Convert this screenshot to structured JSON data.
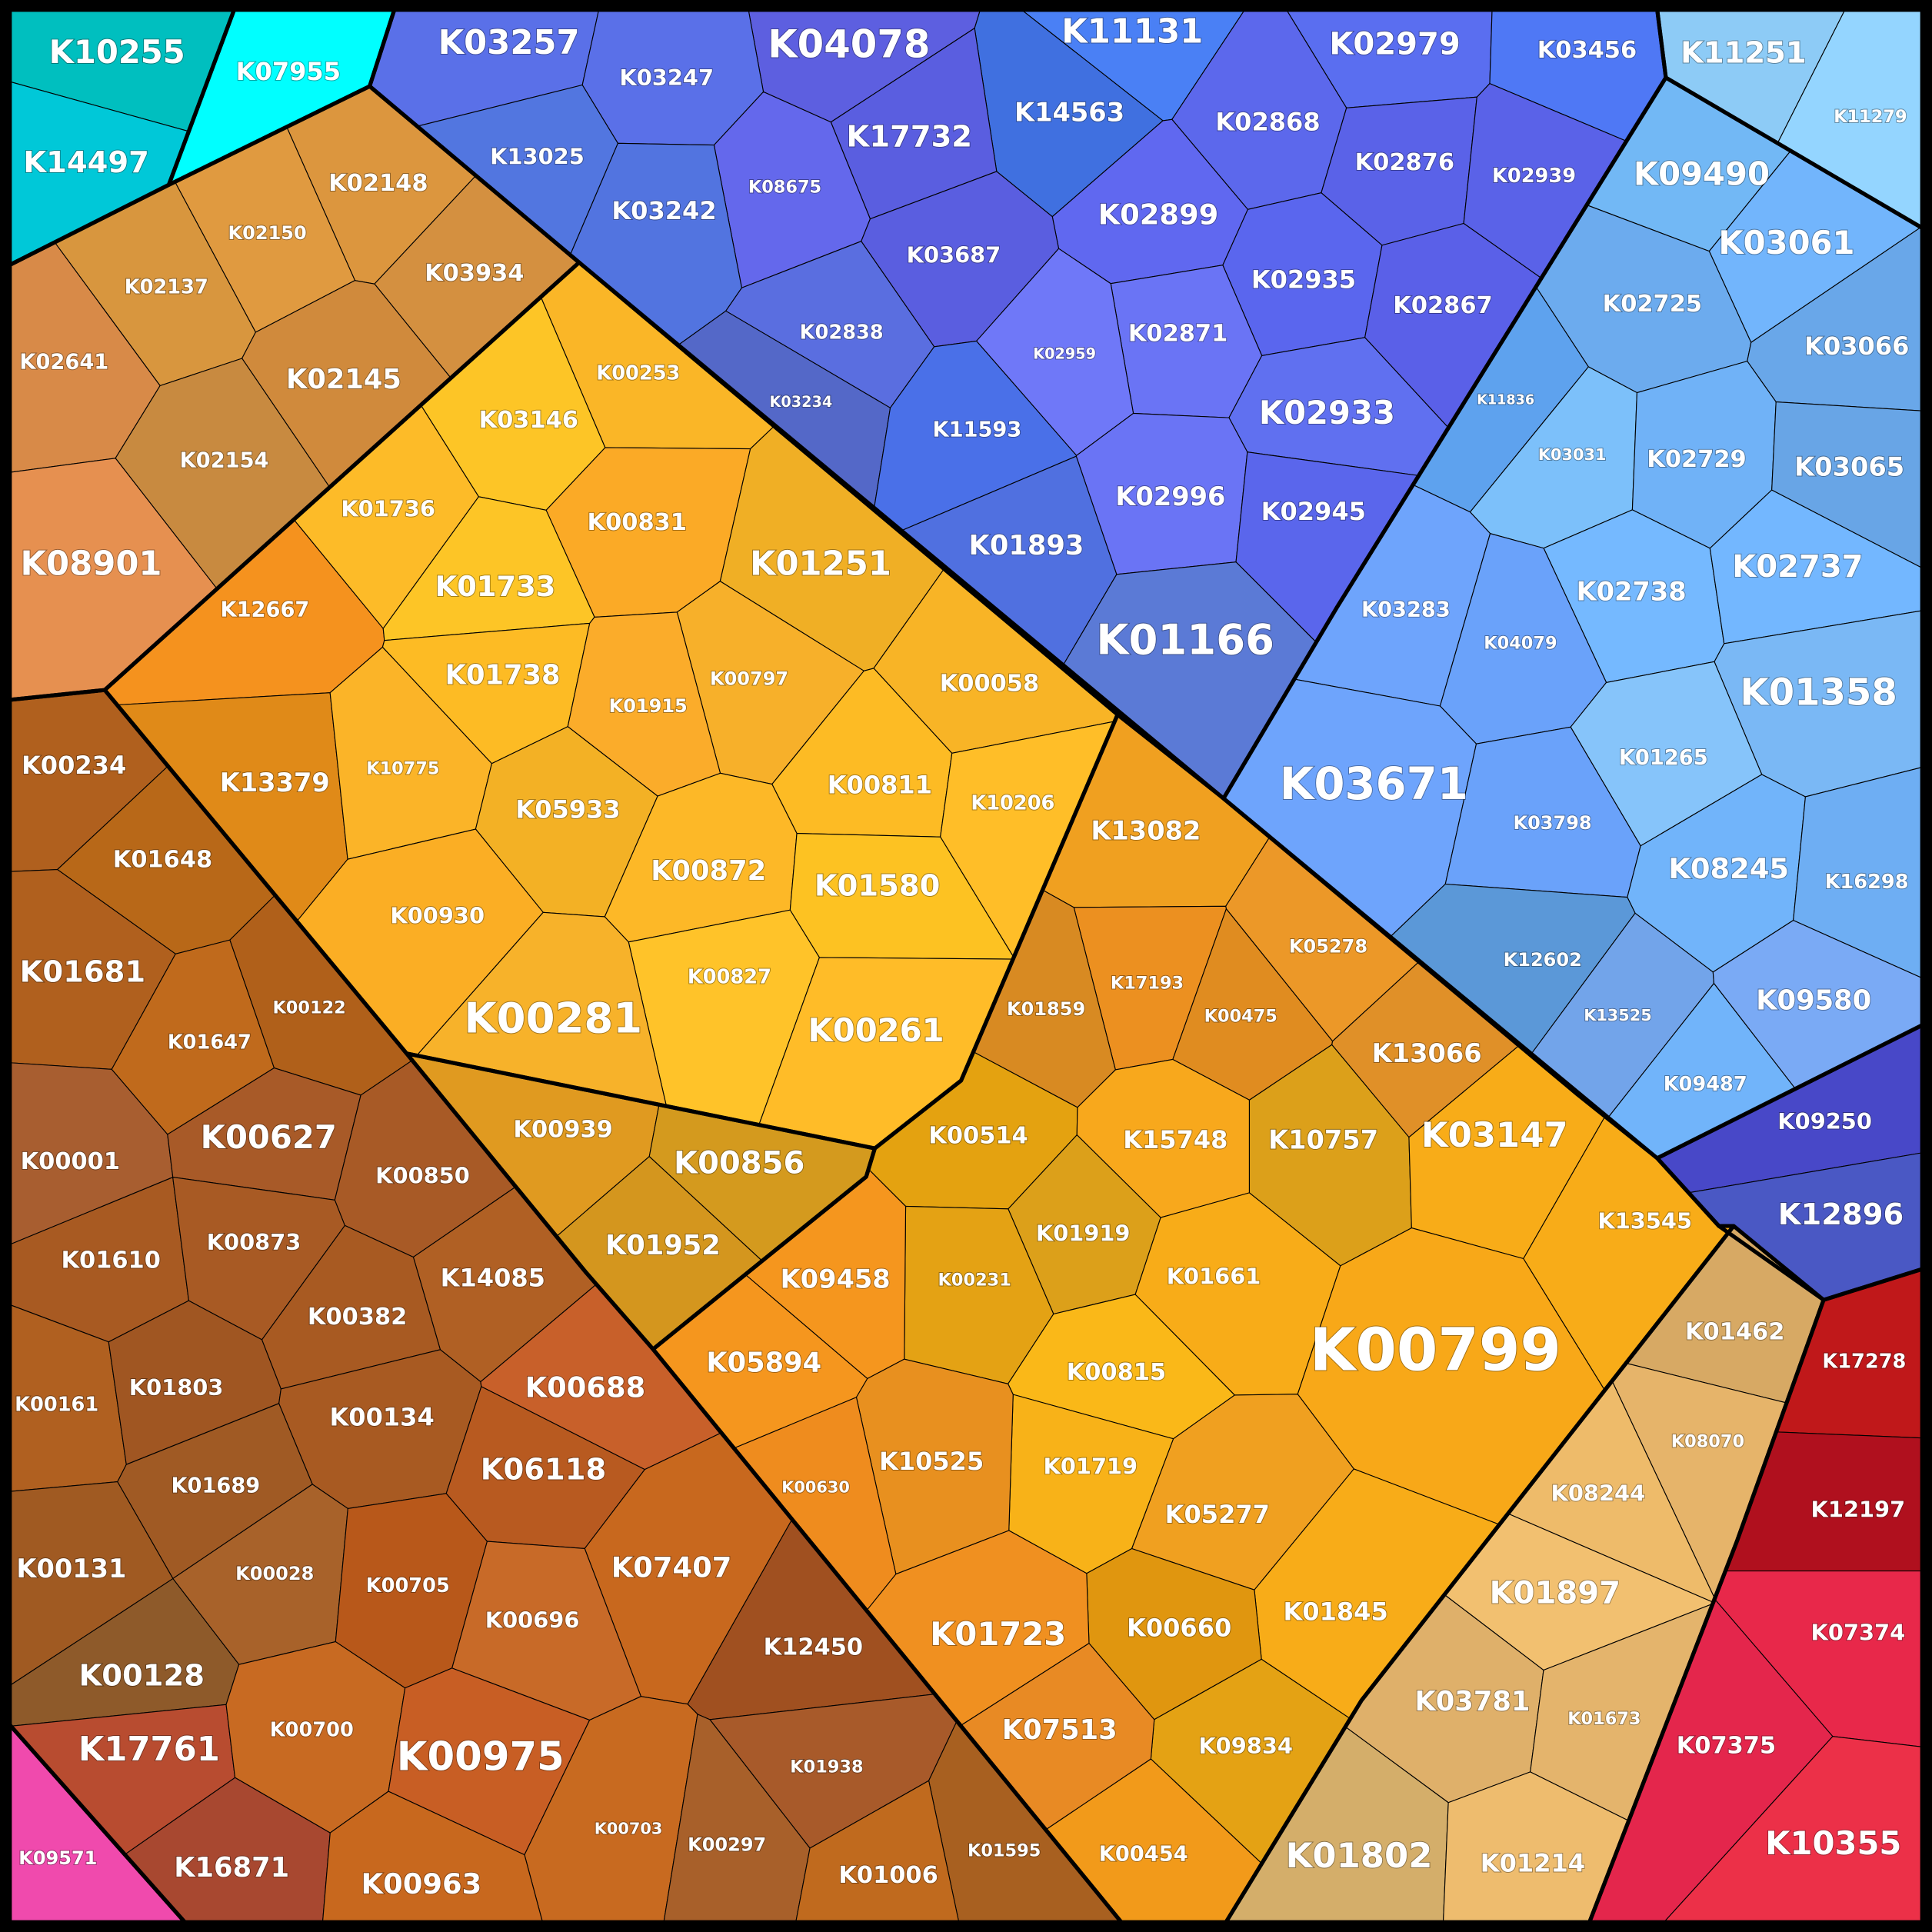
{
  "chart_data": {
    "type": "treemap",
    "layout": "voronoi",
    "groups": [
      {
        "id": "teal",
        "color": "#00c4c8",
        "cells": [
          {
            "label": "K10255",
            "color": "#00bfbf"
          },
          {
            "label": "K14497",
            "color": "#00c8d8"
          }
        ]
      },
      {
        "id": "cyan",
        "color": "#00ffff",
        "cells": [
          {
            "label": "K07955"
          }
        ]
      },
      {
        "id": "tan",
        "color": "#d4913f",
        "cells": [
          {
            "label": "K02148",
            "color": "#dc963e"
          },
          {
            "label": "K02150",
            "color": "#e09a40"
          },
          {
            "label": "K02137",
            "color": "#d8963e"
          },
          {
            "label": "K03934",
            "color": "#d49040"
          },
          {
            "label": "K02641",
            "color": "#d88a48"
          },
          {
            "label": "K02145",
            "color": "#d08a3c"
          },
          {
            "label": "K02154",
            "color": "#c88a40"
          },
          {
            "label": "K08901",
            "color": "#e69050"
          }
        ]
      },
      {
        "id": "yellow",
        "color": "#fdb827",
        "cells": [
          {
            "label": "K12667",
            "color": "#f5921e"
          },
          {
            "label": "K13379",
            "color": "#e08a18"
          },
          {
            "label": "K00253"
          },
          {
            "label": "K03146",
            "color": "#fdc526"
          },
          {
            "label": "K01736",
            "color": "#fdbb28"
          },
          {
            "label": "K00831",
            "color": "#fbaa26"
          },
          {
            "label": "K01251"
          },
          {
            "label": "K01733",
            "color": "#fdc526"
          },
          {
            "label": "K01738",
            "color": "#fdbb24"
          },
          {
            "label": "K00797",
            "color": "#f7b02a"
          },
          {
            "label": "K01915",
            "color": "#fbac2a"
          },
          {
            "label": "K00058"
          },
          {
            "label": "K10775",
            "color": "#fbb428"
          },
          {
            "label": "K05933"
          },
          {
            "label": "K00811",
            "color": "#fdbb24"
          },
          {
            "label": "K10206"
          },
          {
            "label": "K00872"
          },
          {
            "label": "K01580",
            "color": "#fdc222"
          },
          {
            "label": "K00930",
            "color": "#fbae24"
          },
          {
            "label": "K00827"
          },
          {
            "label": "K00281",
            "color": "#f7b22a"
          },
          {
            "label": "K00261"
          }
        ]
      },
      {
        "id": "blue",
        "color": "#5b6ee8",
        "cells": [
          {
            "label": "K03257",
            "color": "#5a70e8"
          },
          {
            "label": "K04078",
            "color": "#5d5fe0"
          },
          {
            "label": "K11131",
            "color": "#4a80f5"
          },
          {
            "label": "K02979",
            "color": "#5a6ef0"
          },
          {
            "label": "K03456",
            "color": "#4f78f5"
          },
          {
            "label": "K03247",
            "color": "#5a70e8"
          },
          {
            "label": "K14563",
            "color": "#4070e0"
          },
          {
            "label": "K02868",
            "color": "#5c68ec"
          },
          {
            "label": "K13025",
            "color": "#5276e0"
          },
          {
            "label": "K17732",
            "color": "#5a5ee0"
          },
          {
            "label": "K02876",
            "color": "#5a62e8"
          },
          {
            "label": "K02939",
            "color": "#5a62e8"
          },
          {
            "label": "K08675",
            "color": "#6468ec"
          },
          {
            "label": "K02899",
            "color": "#6068f0"
          },
          {
            "label": "K03242",
            "color": "#5274e0"
          },
          {
            "label": "K03687",
            "color": "#5a5ee0"
          },
          {
            "label": "K02935",
            "color": "#5a66ee"
          },
          {
            "label": "K02867",
            "color": "#5a60e8"
          },
          {
            "label": "K02838",
            "color": "#5a6ee0"
          },
          {
            "label": "K02871",
            "color": "#6a74f5"
          },
          {
            "label": "K02959",
            "color": "#6f78f8"
          },
          {
            "label": "K03234",
            "color": "#5468c8"
          },
          {
            "label": "K02933",
            "color": "#6070f0"
          },
          {
            "label": "K11593",
            "color": "#4a70e8"
          },
          {
            "label": "K02996",
            "color": "#6a74f5"
          },
          {
            "label": "K02945",
            "color": "#5a66ec"
          },
          {
            "label": "K01893",
            "color": "#5070e0"
          },
          {
            "label": "K01166",
            "color": "#5b7ad6"
          }
        ]
      },
      {
        "id": "pale-blue",
        "color": "#8ecdf8",
        "cells": [
          {
            "label": "K11251"
          },
          {
            "label": "K11279"
          }
        ]
      },
      {
        "id": "light-blue",
        "color": "#6fb0f5",
        "cells": [
          {
            "label": "K09490",
            "color": "#72b8f5"
          },
          {
            "label": "K03061"
          },
          {
            "label": "K02725"
          },
          {
            "label": "K03066"
          },
          {
            "label": "K11836",
            "color": "#5ea2ee"
          },
          {
            "label": "K03031",
            "color": "#7cc0fa"
          },
          {
            "label": "K02729"
          },
          {
            "label": "K03065"
          },
          {
            "label": "K02738"
          },
          {
            "label": "K02737"
          },
          {
            "label": "K03283",
            "color": "#6ea4fc"
          },
          {
            "label": "K04079",
            "color": "#6aa2fa"
          },
          {
            "label": "K01358",
            "color": "#7ab8f5"
          },
          {
            "label": "K03671",
            "color": "#6ea4fc"
          },
          {
            "label": "K01265",
            "color": "#86c4fa"
          },
          {
            "label": "K03798",
            "color": "#6aa2fa"
          },
          {
            "label": "K08245"
          },
          {
            "label": "K16298"
          },
          {
            "label": "K12602",
            "color": "#5b98d8"
          },
          {
            "label": "K13525",
            "color": "#72a4ea"
          },
          {
            "label": "K09580",
            "color": "#7aaaf5"
          },
          {
            "label": "K09487"
          }
        ]
      },
      {
        "id": "dark-blue",
        "color": "#4a55c8",
        "cells": [
          {
            "label": "K09250",
            "color": "#4848c8"
          },
          {
            "label": "K12896",
            "color": "#4a58c4"
          }
        ]
      },
      {
        "id": "orange",
        "color": "#f5a81a",
        "cells": [
          {
            "label": "K13082",
            "color": "#f0a020"
          },
          {
            "label": "K05278",
            "color": "#ec9828"
          },
          {
            "label": "K17193",
            "color": "#ec9020"
          },
          {
            "label": "K01859",
            "color": "#d88a22"
          },
          {
            "label": "K00475",
            "color": "#e08c20"
          },
          {
            "label": "K13066",
            "color": "#e09028"
          },
          {
            "label": "K00514",
            "color": "#e4a210"
          },
          {
            "label": "K15748",
            "color": "#f8a81c"
          },
          {
            "label": "K10757",
            "color": "#dca01a"
          },
          {
            "label": "K03147",
            "color": "#f8ac18"
          },
          {
            "label": "K13545",
            "color": "#f8ac18"
          },
          {
            "label": "K01919",
            "color": "#dca01a"
          },
          {
            "label": "K01661",
            "color": "#f8ac18"
          },
          {
            "label": "K00231",
            "color": "#e4a214"
          },
          {
            "label": "K00799",
            "color": "#f8a818"
          },
          {
            "label": "K00815",
            "color": "#fab818"
          },
          {
            "label": "K01719",
            "color": "#f8b218"
          },
          {
            "label": "K05277",
            "color": "#f0a020"
          },
          {
            "label": "K01845",
            "color": "#f8ac18"
          },
          {
            "label": "K00660",
            "color": "#e0960f"
          },
          {
            "label": "K09834",
            "color": "#e4a214"
          },
          {
            "label": "K00454",
            "color": "#f29a1a"
          },
          {
            "label": "K09458",
            "color": "#f5961e"
          },
          {
            "label": "K05894",
            "color": "#f5961e"
          },
          {
            "label": "K10525",
            "color": "#e8901f"
          },
          {
            "label": "K00630",
            "color": "#ef8c1e"
          },
          {
            "label": "K01723",
            "color": "#f09020"
          },
          {
            "label": "K07513",
            "color": "#e88a24"
          }
        ]
      },
      {
        "id": "olive",
        "color": "#d4961e",
        "cells": [
          {
            "label": "K00939",
            "color": "#e09a20"
          },
          {
            "label": "K00856",
            "color": "#d49a1e"
          },
          {
            "label": "K01952",
            "color": "#d4961e"
          }
        ]
      },
      {
        "id": "sand",
        "color": "#e5b46a",
        "cells": [
          {
            "label": "K01462"
          },
          {
            "label": "K08070",
            "color": "#e6b46a"
          },
          {
            "label": "K08244",
            "color": "#eebb6a"
          },
          {
            "label": "K01897",
            "color": "#f2c070"
          },
          {
            "label": "K03781",
            "color": "#dfb06a"
          },
          {
            "label": "K01673",
            "color": "#e4b46c"
          },
          {
            "label": "K01802",
            "color": "#d4ae6a"
          },
          {
            "label": "K01214",
            "color": "#eebc6e"
          }
        ]
      },
      {
        "id": "red",
        "color": "#e8284a",
        "cells": [
          {
            "label": "K17278",
            "color": "#c0181a"
          },
          {
            "label": "K12197",
            "color": "#b0101e"
          },
          {
            "label": "K07374",
            "color": "#e8284a"
          },
          {
            "label": "K07375",
            "color": "#e4264c"
          },
          {
            "label": "K10355",
            "color": "#ec3048"
          }
        ]
      },
      {
        "id": "brown",
        "color": "#a85a22",
        "cells": [
          {
            "label": "K00234",
            "color": "#b0601e"
          },
          {
            "label": "K01648",
            "color": "#b86818"
          },
          {
            "label": "K01681",
            "color": "#b0601e"
          },
          {
            "label": "K01647",
            "color": "#c06a1c"
          },
          {
            "label": "K00122",
            "color": "#b0601a"
          },
          {
            "label": "K00001",
            "color": "#a85e30"
          },
          {
            "label": "K00627",
            "color": "#a85a28"
          },
          {
            "label": "K00850",
            "color": "#a85a26"
          },
          {
            "label": "K01610",
            "color": "#a85a22"
          },
          {
            "label": "K00873",
            "color": "#a85a24"
          },
          {
            "label": "K14085",
            "color": "#b06024"
          },
          {
            "label": "K00382",
            "color": "#a85a22"
          },
          {
            "label": "K00161",
            "color": "#b06020"
          },
          {
            "label": "K01803",
            "color": "#a05622"
          },
          {
            "label": "K00134",
            "color": "#a85a22"
          },
          {
            "label": "K00688",
            "color": "#c8602a"
          },
          {
            "label": "K01689",
            "color": "#a05a24"
          },
          {
            "label": "K06118",
            "color": "#b85a20"
          },
          {
            "label": "K00028",
            "color": "#a8622a"
          },
          {
            "label": "K00131",
            "color": "#a05a22"
          },
          {
            "label": "K07407",
            "color": "#c8681e"
          },
          {
            "label": "K00705",
            "color": "#b8581a"
          },
          {
            "label": "K00696",
            "color": "#c86a28"
          },
          {
            "label": "K12450",
            "color": "#a05020"
          },
          {
            "label": "K00128",
            "color": "#8e5a2a"
          },
          {
            "label": "K17761",
            "color": "#b84c30"
          },
          {
            "label": "K00700",
            "color": "#c86a22"
          },
          {
            "label": "K00975",
            "color": "#c85e24"
          },
          {
            "label": "K01938",
            "color": "#a85a2a"
          },
          {
            "label": "K00703",
            "color": "#c86a20"
          },
          {
            "label": "K00297",
            "color": "#a8602a"
          },
          {
            "label": "K01595",
            "color": "#a86020"
          },
          {
            "label": "K01006",
            "color": "#c06a1e"
          },
          {
            "label": "K16871",
            "color": "#a84830"
          },
          {
            "label": "K00963",
            "color": "#c8681e"
          }
        ]
      },
      {
        "id": "pink",
        "color": "#ff4fb8",
        "cells": [
          {
            "label": "K09571"
          }
        ]
      }
    ]
  }
}
